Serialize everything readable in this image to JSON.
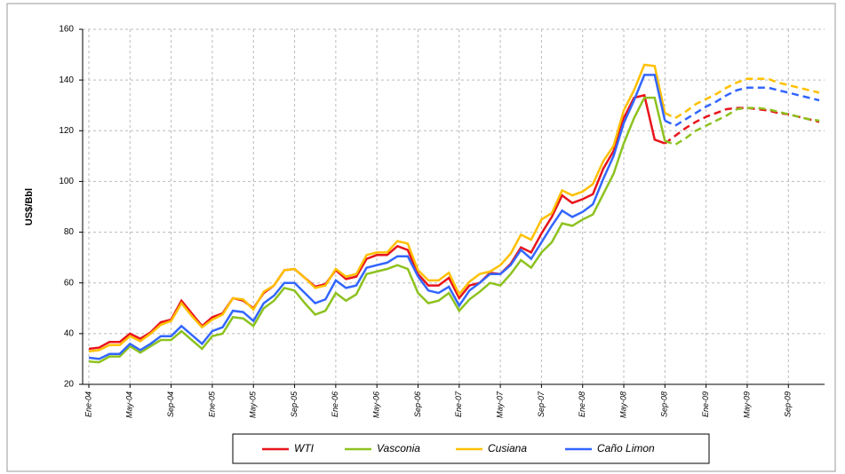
{
  "chart_data": {
    "type": "line",
    "y_label": "US$/Bbl",
    "categories": [
      "Ene-04",
      null,
      null,
      null,
      "May-04",
      null,
      null,
      null,
      "Sep-04",
      null,
      null,
      null,
      "Ene-05",
      null,
      null,
      null,
      "May-05",
      null,
      null,
      null,
      "Sep-05",
      null,
      null,
      null,
      "Ene-06",
      null,
      null,
      null,
      "May-06",
      null,
      null,
      null,
      "Sep-06",
      null,
      null,
      null,
      "Ene-07",
      null,
      null,
      null,
      "May-07",
      null,
      null,
      null,
      "Sep-07",
      null,
      null,
      null,
      "Ene-08",
      null,
      null,
      null,
      "May-08",
      null,
      null,
      null,
      "Sep-08",
      null,
      null,
      null,
      "Ene-09",
      null,
      null,
      null,
      "May-09",
      null,
      null,
      null,
      "Sep-09",
      null,
      null,
      null
    ],
    "ylim": [
      20,
      160
    ],
    "yticks": [
      20,
      40,
      60,
      80,
      100,
      120,
      140,
      160
    ],
    "grid": true,
    "legend": "bottom",
    "series": [
      {
        "name": "WTI",
        "color": "#e8141c",
        "values": [
          34,
          34.5,
          36.7,
          36.7,
          40,
          38,
          40.5,
          44.5,
          45.5,
          53,
          48,
          43,
          46.5,
          48,
          54,
          53,
          50,
          56,
          59,
          65,
          65.5,
          62,
          58.5,
          59.5,
          65,
          61.5,
          62.5,
          69.5,
          71,
          71,
          74.5,
          73,
          63.5,
          59,
          59,
          62,
          54,
          59,
          60,
          64,
          63.5,
          67.5,
          74,
          72,
          79.5,
          86,
          94.5,
          91.5,
          93,
          95,
          105,
          112,
          125,
          133,
          134,
          116.5,
          115,
          null,
          null,
          null,
          null,
          null,
          null,
          null,
          null,
          null,
          null,
          null,
          null,
          null,
          null,
          null
        ],
        "forecast_values": [
          null,
          null,
          null,
          null,
          null,
          null,
          null,
          null,
          null,
          null,
          null,
          null,
          null,
          null,
          null,
          null,
          null,
          null,
          null,
          null,
          null,
          null,
          null,
          null,
          null,
          null,
          null,
          null,
          null,
          null,
          null,
          null,
          null,
          null,
          null,
          null,
          null,
          null,
          null,
          null,
          null,
          null,
          null,
          null,
          null,
          null,
          null,
          null,
          null,
          null,
          null,
          null,
          null,
          null,
          null,
          null,
          115,
          118,
          121,
          123.5,
          125.5,
          127,
          128.5,
          129,
          129,
          128.5,
          128,
          127,
          126.5,
          125.5,
          124.5,
          123.5
        ]
      },
      {
        "name": "Vasconia",
        "color": "#8dc21f",
        "values": [
          29,
          28.7,
          31,
          31,
          35,
          32.5,
          35,
          37.5,
          37.5,
          41,
          37.5,
          34,
          39,
          40,
          46.5,
          46,
          43,
          50,
          53,
          58,
          57,
          52,
          47.5,
          49,
          56,
          53,
          55.5,
          63.5,
          64.5,
          65.5,
          67,
          65.5,
          56,
          52,
          53,
          56,
          49,
          53.5,
          56.5,
          60,
          59,
          63.5,
          69,
          66,
          72,
          76,
          83.5,
          82.5,
          85,
          87,
          95,
          103,
          115,
          125,
          133,
          133,
          116,
          null,
          null,
          null,
          null,
          null,
          null,
          null,
          null,
          null,
          null,
          null,
          null,
          null,
          null,
          null
        ],
        "forecast_values": [
          null,
          null,
          null,
          null,
          null,
          null,
          null,
          null,
          null,
          null,
          null,
          null,
          null,
          null,
          null,
          null,
          null,
          null,
          null,
          null,
          null,
          null,
          null,
          null,
          null,
          null,
          null,
          null,
          null,
          null,
          null,
          null,
          null,
          null,
          null,
          null,
          null,
          null,
          null,
          null,
          null,
          null,
          null,
          null,
          null,
          null,
          null,
          null,
          null,
          null,
          null,
          null,
          null,
          null,
          null,
          null,
          116,
          114.5,
          117,
          120,
          122,
          124,
          126,
          128.5,
          129,
          129,
          128.5,
          127.5,
          126.5,
          125.5,
          124.5,
          124
        ]
      },
      {
        "name": "Cusiana",
        "color": "#ffc000",
        "values": [
          33,
          33.5,
          35.5,
          35.5,
          39,
          37,
          40,
          43.5,
          45,
          52,
          47,
          42.5,
          45.5,
          47.5,
          54,
          53.5,
          49.5,
          56.5,
          59,
          65,
          65.5,
          62,
          58,
          59,
          65.5,
          62.5,
          63.5,
          71,
          72,
          72,
          76.5,
          75.5,
          65,
          61,
          61,
          64,
          55.5,
          60.5,
          63.5,
          64.5,
          67,
          71.5,
          79,
          77,
          85,
          87.5,
          96.5,
          94.5,
          96,
          99,
          108,
          114,
          128,
          136,
          146,
          145.5,
          127,
          null,
          null,
          null,
          null,
          null,
          null,
          null,
          null,
          null,
          null,
          null,
          null,
          null,
          null,
          null
        ],
        "forecast_values": [
          null,
          null,
          null,
          null,
          null,
          null,
          null,
          null,
          null,
          null,
          null,
          null,
          null,
          null,
          null,
          null,
          null,
          null,
          null,
          null,
          null,
          null,
          null,
          null,
          null,
          null,
          null,
          null,
          null,
          null,
          null,
          null,
          null,
          null,
          null,
          null,
          null,
          null,
          null,
          null,
          null,
          null,
          null,
          null,
          null,
          null,
          null,
          null,
          null,
          null,
          null,
          null,
          null,
          null,
          null,
          null,
          127,
          125,
          127.5,
          130.5,
          132.5,
          134.5,
          137,
          139,
          140.5,
          140.5,
          140.5,
          139,
          138,
          137,
          136,
          135
        ]
      },
      {
        "name": "Caño Limon",
        "color": "#3366ff",
        "values": [
          30.5,
          30,
          32,
          32,
          36,
          33.5,
          36,
          39,
          39,
          43,
          39.5,
          36,
          41,
          42.5,
          49,
          48.5,
          45,
          52,
          55,
          60,
          60,
          56,
          52,
          53.5,
          61,
          58,
          59,
          66,
          67,
          68,
          70.5,
          70.5,
          62.5,
          57,
          56,
          58.5,
          51,
          57,
          60,
          63.5,
          63.5,
          67,
          73,
          69.5,
          76,
          82.5,
          88.5,
          86,
          88,
          91,
          101,
          110,
          123,
          132,
          142,
          142,
          124,
          null,
          null,
          null,
          null,
          null,
          null,
          null,
          null,
          null,
          null,
          null,
          null,
          null,
          null,
          null
        ],
        "forecast_values": [
          null,
          null,
          null,
          null,
          null,
          null,
          null,
          null,
          null,
          null,
          null,
          null,
          null,
          null,
          null,
          null,
          null,
          null,
          null,
          null,
          null,
          null,
          null,
          null,
          null,
          null,
          null,
          null,
          null,
          null,
          null,
          null,
          null,
          null,
          null,
          null,
          null,
          null,
          null,
          null,
          null,
          null,
          null,
          null,
          null,
          null,
          null,
          null,
          null,
          null,
          null,
          null,
          null,
          null,
          null,
          null,
          124,
          122,
          124.5,
          127,
          129.5,
          131.5,
          134,
          136,
          137,
          137,
          137,
          136,
          135,
          134,
          133,
          132
        ]
      }
    ]
  }
}
